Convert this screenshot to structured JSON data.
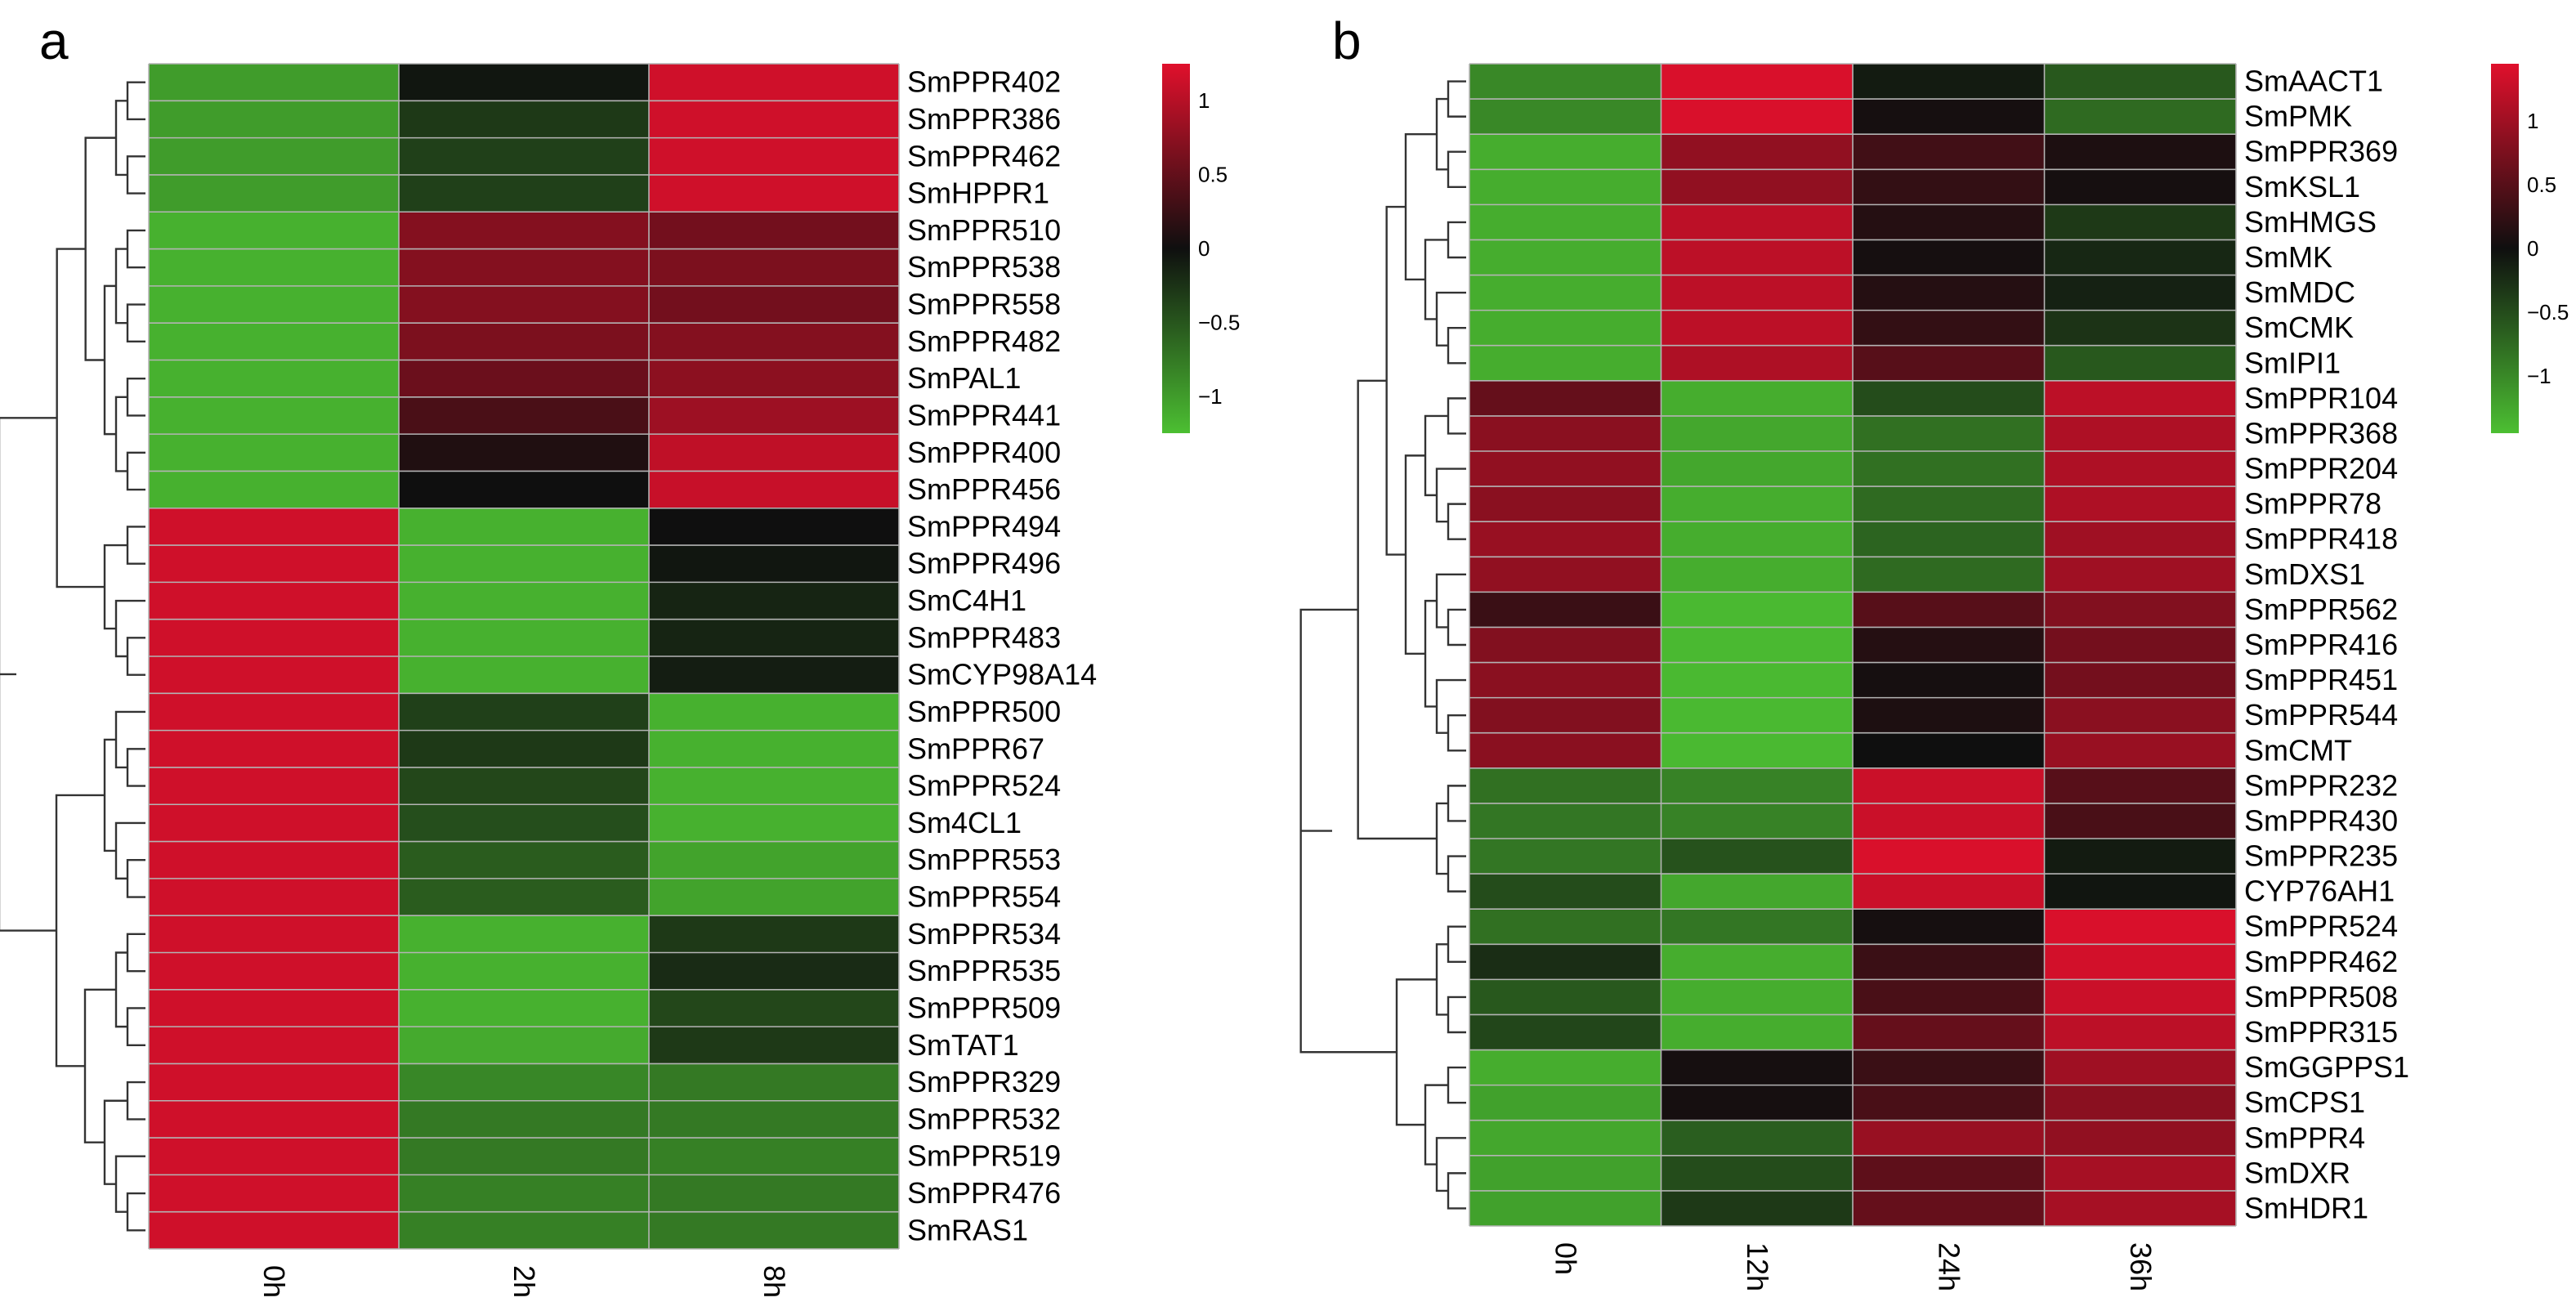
{
  "figure": {
    "colors": {
      "low": "#4cbf32",
      "mid": "#0f0f0f",
      "high": "#e0102c",
      "grid": "#b4b4b4"
    }
  },
  "chart_data": [
    {
      "type": "heatmap",
      "panel": "a",
      "columns": [
        "0h",
        "2h",
        "8h"
      ],
      "rows": [
        "SmPPR402",
        "SmPPR386",
        "SmPPR462",
        "SmHPPR1",
        "SmPPR510",
        "SmPPR538",
        "SmPPR558",
        "SmPPR482",
        "SmPAL1",
        "SmPPR441",
        "SmPPR400",
        "SmPPR456",
        "SmPPR494",
        "SmPPR496",
        "SmC4H1",
        "SmPPR483",
        "SmCYP98A14",
        "SmPPR500",
        "SmPPR67",
        "SmPPR524",
        "Sm4CL1",
        "SmPPR553",
        "SmPPR554",
        "SmPPR534",
        "SmPPR535",
        "SmPPR509",
        "SmTAT1",
        "SmPPR329",
        "SmPPR532",
        "SmPPR519",
        "SmPPR476",
        "SmRAS1"
      ],
      "values": [
        [
          -1.0,
          -0.05,
          1.15
        ],
        [
          -1.0,
          -0.3,
          1.15
        ],
        [
          -1.0,
          -0.35,
          1.15
        ],
        [
          -1.0,
          -0.35,
          1.15
        ],
        [
          -1.15,
          0.7,
          0.6
        ],
        [
          -1.15,
          0.7,
          0.65
        ],
        [
          -1.15,
          0.7,
          0.6
        ],
        [
          -1.15,
          0.65,
          0.7
        ],
        [
          -1.15,
          0.55,
          0.75
        ],
        [
          -1.15,
          0.35,
          0.85
        ],
        [
          -1.15,
          0.1,
          1.05
        ],
        [
          -1.15,
          0.0,
          1.1
        ],
        [
          1.15,
          -1.15,
          0.0
        ],
        [
          1.15,
          -1.15,
          -0.05
        ],
        [
          1.15,
          -1.15,
          -0.15
        ],
        [
          1.15,
          -1.15,
          -0.15
        ],
        [
          1.15,
          -1.15,
          -0.1
        ],
        [
          1.15,
          -0.35,
          -1.15
        ],
        [
          1.15,
          -0.3,
          -1.15
        ],
        [
          1.15,
          -0.4,
          -1.15
        ],
        [
          1.15,
          -0.45,
          -1.15
        ],
        [
          1.15,
          -0.55,
          -1.05
        ],
        [
          1.15,
          -0.55,
          -1.05
        ],
        [
          1.15,
          -1.15,
          -0.3
        ],
        [
          1.15,
          -1.15,
          -0.2
        ],
        [
          1.15,
          -1.15,
          -0.4
        ],
        [
          1.15,
          -1.1,
          -0.3
        ],
        [
          1.15,
          -0.85,
          -0.75
        ],
        [
          1.15,
          -0.75,
          -0.75
        ],
        [
          1.15,
          -0.75,
          -0.8
        ],
        [
          1.15,
          -0.8,
          -0.75
        ],
        [
          1.15,
          -0.8,
          -0.75
        ]
      ],
      "colorbar": {
        "min": -1.25,
        "max": 1.25,
        "ticks": [
          1,
          0.5,
          0,
          -0.5,
          -1
        ],
        "tick_labels": [
          "1",
          "0.5",
          "0",
          "−0.5",
          "−1"
        ]
      }
    },
    {
      "type": "heatmap",
      "panel": "b",
      "columns": [
        "0h",
        "12h",
        "24h",
        "36h"
      ],
      "rows": [
        "SmAACT1",
        "SmPMK",
        "SmPPR369",
        "SmKSL1",
        "SmHMGS",
        "SmMK",
        "SmMDC",
        "SmCMK",
        "SmIPI1",
        "SmPPR104",
        "SmPPR368",
        "SmPPR204",
        "SmPPR78",
        "SmPPR418",
        "SmDXS1",
        "SmPPR562",
        "SmPPR416",
        "SmPPR451",
        "SmPPR544",
        "SmCMT",
        "SmPPR232",
        "SmPPR430",
        "SmPPR235",
        "CYP76AH1",
        "SmPPR524",
        "SmPPR462",
        "SmPPR508",
        "SmPPR315",
        "SmGGPPS1",
        "SmCPS1",
        "SmPPR4",
        "SmDXR",
        "SmHDR1"
      ],
      "values": [
        [
          -1.0,
          1.4,
          -0.1,
          -0.6
        ],
        [
          -1.0,
          1.4,
          0.05,
          -0.75
        ],
        [
          -1.3,
          0.9,
          0.35,
          0.1
        ],
        [
          -1.3,
          0.9,
          0.25,
          0.05
        ],
        [
          -1.3,
          1.2,
          0.15,
          -0.35
        ],
        [
          -1.3,
          1.2,
          0.05,
          -0.2
        ],
        [
          -1.3,
          1.2,
          0.15,
          -0.15
        ],
        [
          -1.3,
          1.2,
          0.25,
          -0.3
        ],
        [
          -1.3,
          1.1,
          0.5,
          -0.6
        ],
        [
          0.6,
          -1.3,
          -0.5,
          1.2
        ],
        [
          0.85,
          -1.25,
          -0.8,
          1.1
        ],
        [
          0.9,
          -1.25,
          -0.8,
          1.1
        ],
        [
          0.85,
          -1.3,
          -0.75,
          1.1
        ],
        [
          0.95,
          -1.3,
          -0.7,
          1.0
        ],
        [
          0.9,
          -1.3,
          -0.75,
          1.0
        ],
        [
          0.3,
          -1.4,
          0.5,
          0.8
        ],
        [
          0.8,
          -1.4,
          0.15,
          0.7
        ],
        [
          0.85,
          -1.4,
          0.05,
          0.7
        ],
        [
          0.8,
          -1.4,
          0.1,
          0.85
        ],
        [
          0.85,
          -1.4,
          0.0,
          0.95
        ],
        [
          -0.8,
          -0.95,
          1.3,
          0.5
        ],
        [
          -0.85,
          -0.95,
          1.3,
          0.4
        ],
        [
          -0.85,
          -0.55,
          1.4,
          -0.1
        ],
        [
          -0.5,
          -1.25,
          1.3,
          -0.05
        ],
        [
          -0.8,
          -0.85,
          0.05,
          1.4
        ],
        [
          -0.25,
          -1.3,
          0.3,
          1.35
        ],
        [
          -0.6,
          -1.3,
          0.4,
          1.3
        ],
        [
          -0.45,
          -1.3,
          0.6,
          1.2
        ],
        [
          -1.3,
          0.05,
          0.3,
          1.0
        ],
        [
          -1.2,
          0.05,
          0.4,
          0.85
        ],
        [
          -1.25,
          -0.65,
          0.95,
          0.9
        ],
        [
          -1.2,
          -0.5,
          0.55,
          1.05
        ],
        [
          -1.2,
          -0.35,
          0.6,
          1.05
        ]
      ],
      "colorbar": {
        "min": -1.45,
        "max": 1.45,
        "ticks": [
          1,
          0.5,
          0,
          -0.5,
          -1
        ],
        "tick_labels": [
          "1",
          "0.5",
          "0",
          "−0.5",
          "−1"
        ]
      }
    }
  ]
}
